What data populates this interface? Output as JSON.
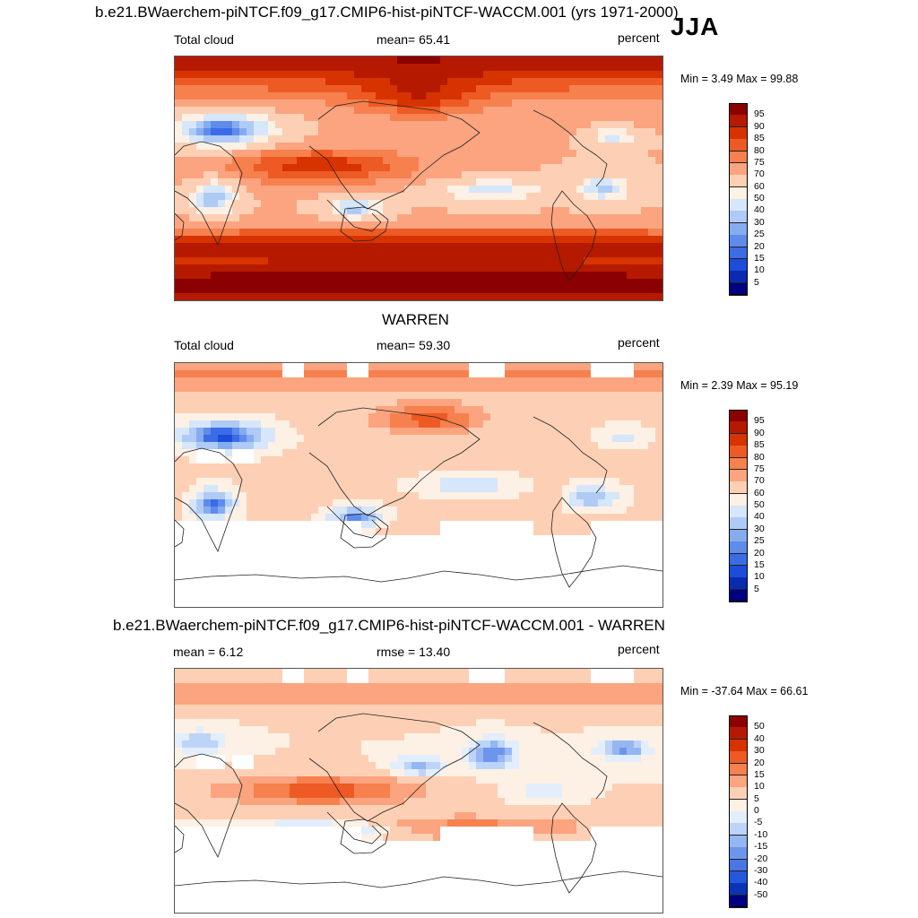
{
  "header": {
    "title": "b.e21.BWaerchem-piNTCF.f09_g17.CMIP6-hist-piNTCF-WACCM.001 (yrs 1971-2000)",
    "season": "JJA"
  },
  "panels": [
    {
      "title": "",
      "left_label": "Total cloud",
      "center_label": "mean=  65.41",
      "right_label": "percent",
      "minmax": "Min =   3.49 Max =  99.88",
      "palette": "abs",
      "masked": false,
      "colorbar_labels": [
        "95",
        "90",
        "85",
        "80",
        "75",
        "70",
        "60",
        "50",
        "40",
        "30",
        "25",
        "20",
        "15",
        "10",
        "5"
      ]
    },
    {
      "title": "WARREN",
      "left_label": "Total cloud",
      "center_label": "mean=  59.30",
      "right_label": "percent",
      "minmax": "Min =   2.39 Max =  95.19",
      "palette": "abs",
      "masked": true,
      "colorbar_labels": [
        "95",
        "90",
        "85",
        "80",
        "75",
        "70",
        "60",
        "50",
        "40",
        "30",
        "25",
        "20",
        "15",
        "10",
        "5"
      ]
    },
    {
      "title": "b.e21.BWaerchem-piNTCF.f09_g17.CMIP6-hist-piNTCF-WACCM.001 - WARREN",
      "left_label": "mean =   6.12",
      "center_label": "rmse =  13.40",
      "right_label": "percent",
      "minmax": "Min = -37.64 Max =  66.61",
      "palette": "diff",
      "masked": true,
      "colorbar_labels": [
        "50",
        "40",
        "30",
        "20",
        "15",
        "10",
        "5",
        "0",
        "-5",
        "-10",
        "-15",
        "-20",
        "-30",
        "-40",
        "-50"
      ]
    }
  ],
  "chart_data": [
    {
      "type": "heatmap",
      "title": "b.e21.BWaerchem-piNTCF.f09_g17.CMIP6-hist-piNTCF-WACCM.001 (yrs 1971-2000)",
      "variable": "Total cloud",
      "units": "percent",
      "mean": 65.41,
      "min": 3.49,
      "max": 99.88,
      "contour_levels": [
        5,
        10,
        15,
        20,
        25,
        30,
        40,
        50,
        60,
        70,
        75,
        80,
        85,
        90,
        95
      ]
    },
    {
      "type": "heatmap",
      "title": "WARREN",
      "variable": "Total cloud",
      "units": "percent",
      "mean": 59.3,
      "min": 2.39,
      "max": 95.19,
      "contour_levels": [
        5,
        10,
        15,
        20,
        25,
        30,
        40,
        50,
        60,
        70,
        75,
        80,
        85,
        90,
        95
      ]
    },
    {
      "type": "heatmap",
      "title": "b.e21.BWaerchem-piNTCF.f09_g17.CMIP6-hist-piNTCF-WACCM.001 - WARREN",
      "units": "percent",
      "mean": 6.12,
      "rmse": 13.4,
      "min": -37.64,
      "max": 66.61,
      "contour_levels": [
        -50,
        -40,
        -30,
        -20,
        -15,
        -10,
        -5,
        0,
        5,
        10,
        15,
        20,
        30,
        40,
        50
      ]
    }
  ],
  "palettes": {
    "abs": [
      "#8b0000",
      "#b51a00",
      "#d63300",
      "#ee5a24",
      "#f7804f",
      "#fba47f",
      "#fdd0b5",
      "#fdf0e4",
      "#d6e6fb",
      "#afcbf5",
      "#86acf0",
      "#5f8bea",
      "#3b6ce6",
      "#1c4dd9",
      "#0a2ab0",
      "#000080"
    ],
    "diff": [
      "#8b0000",
      "#b51a00",
      "#d63300",
      "#ee5a24",
      "#f7804f",
      "#fba47f",
      "#fdd0b5",
      "#fdf0e4",
      "#e3eefc",
      "#bcd4f7",
      "#95b6f1",
      "#6e95ec",
      "#4a76e6",
      "#2657da",
      "#0a33b5",
      "#000080"
    ]
  }
}
